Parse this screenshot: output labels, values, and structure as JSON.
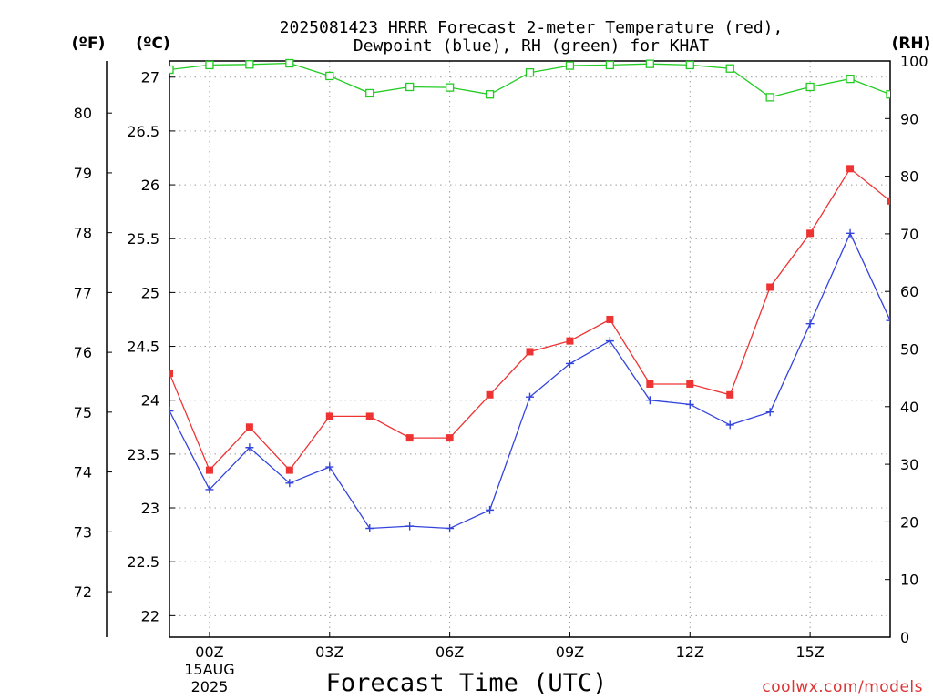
{
  "chart_data": {
    "type": "line",
    "title_line1": "2025081423 HRRR Forecast 2-meter Temperature (red),",
    "title_line2": "Dewpoint (blue), RH (green) for KHAT",
    "xlabel": "Forecast Time (UTC)",
    "unit_f": "(ºF)",
    "unit_c": "(ºC)",
    "unit_rh": "(RH)",
    "watermark": "coolwx.com/models",
    "x_ticks": [
      {
        "hour": 0,
        "label": "00Z",
        "sub1": "15AUG",
        "sub2": "2025"
      },
      {
        "hour": 3,
        "label": "03Z"
      },
      {
        "hour": 6,
        "label": "06Z"
      },
      {
        "hour": 9,
        "label": "09Z"
      },
      {
        "hour": 12,
        "label": "12Z"
      },
      {
        "hour": 15,
        "label": "15Z"
      }
    ],
    "x_range": [
      -1,
      17
    ],
    "ylim_c": [
      21.8,
      27.15
    ],
    "ylim_rh": [
      0,
      100
    ],
    "c_ticks": [
      "22",
      "22.5",
      "23",
      "23.5",
      "24",
      "24.5",
      "25",
      "25.5",
      "26",
      "26.5",
      "27"
    ],
    "f_ticks": [
      "72",
      "73",
      "74",
      "75",
      "76",
      "77",
      "78",
      "79",
      "80"
    ],
    "rh_ticks": [
      "0",
      "10",
      "20",
      "30",
      "40",
      "50",
      "60",
      "70",
      "80",
      "90",
      "100"
    ],
    "grid": true,
    "x": [
      -1,
      0,
      1,
      2,
      3,
      4,
      5,
      6,
      7,
      8,
      9,
      10,
      11,
      12,
      13,
      14,
      15,
      16,
      17
    ],
    "series": [
      {
        "name": "Temperature",
        "color": "#ee3333",
        "marker": "filled-square",
        "values": [
          24.25,
          23.35,
          23.75,
          23.35,
          23.85,
          23.85,
          23.65,
          23.65,
          24.05,
          24.45,
          24.55,
          24.75,
          24.15,
          24.15,
          24.05,
          25.05,
          25.55,
          26.15,
          25.85
        ]
      },
      {
        "name": "Dewpoint",
        "color": "#3344dd",
        "marker": "plus",
        "values": [
          23.9,
          23.17,
          23.56,
          23.23,
          23.38,
          22.81,
          22.83,
          22.81,
          22.98,
          24.03,
          24.34,
          24.55,
          24.0,
          23.96,
          23.77,
          23.89,
          24.71,
          25.55,
          24.74
        ]
      },
      {
        "name": "RH",
        "color": "#22cc22",
        "marker": "open-square",
        "axis": "rh",
        "values": [
          98.5,
          99.3,
          99.4,
          99.6,
          97.4,
          94.4,
          95.5,
          95.4,
          94.2,
          98.0,
          99.2,
          99.3,
          99.5,
          99.3,
          98.7,
          93.7,
          95.5,
          96.9,
          94.2
        ]
      }
    ]
  }
}
